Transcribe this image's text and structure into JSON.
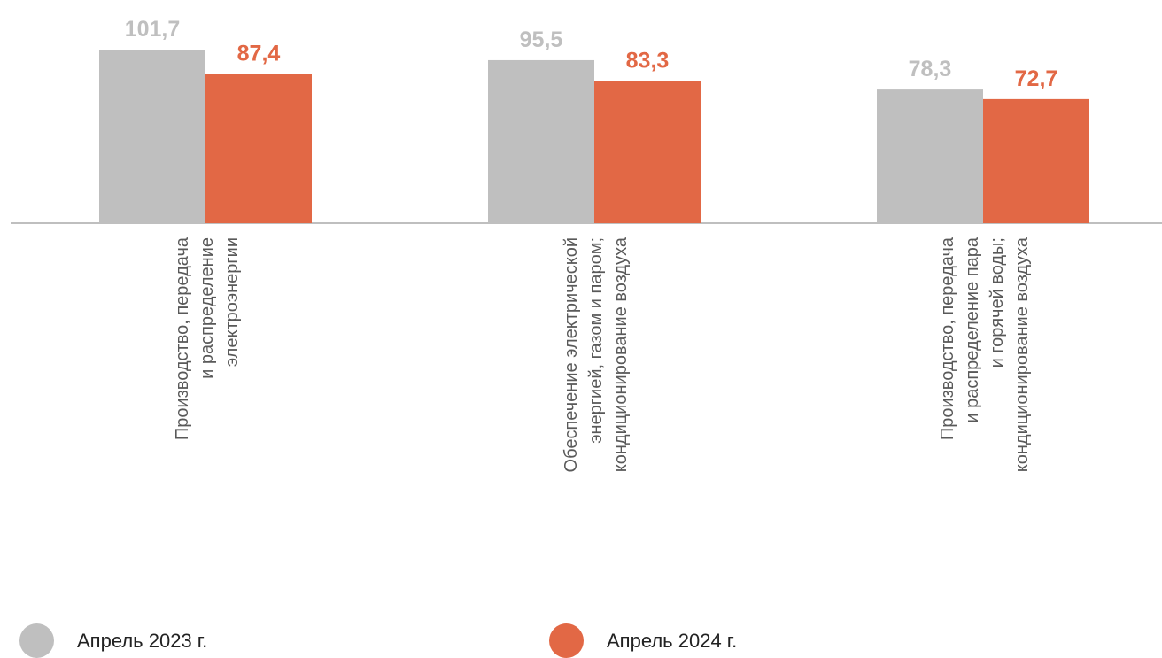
{
  "chart_data": {
    "type": "bar",
    "categories": [
      [
        "Производство, передача",
        "и распределение",
        "электроэнергии"
      ],
      [
        "Обеспечение электрической",
        "энергией, газом и паром;",
        "кондиционирование воздуха"
      ],
      [
        "Производство, передача",
        "и распределение пара",
        "и горячей воды;",
        "кондиционирование воздуха"
      ]
    ],
    "series": [
      {
        "name": "Апрель 2023 г.",
        "values": [
          101.7,
          95.5,
          78.3
        ],
        "labels": [
          "101,7",
          "95,5",
          "78,3"
        ],
        "color": "#bfbfbf",
        "label_color": "#bfbfbf"
      },
      {
        "name": "Апрель 2024 г.",
        "values": [
          87.4,
          83.3,
          72.7
        ],
        "labels": [
          "87,4",
          "83,3",
          "72,7"
        ],
        "color": "#e26845",
        "label_color": "#e26845"
      }
    ],
    "ylim": [
      0,
      113
    ],
    "grid": false,
    "legend_position": "bottom"
  }
}
